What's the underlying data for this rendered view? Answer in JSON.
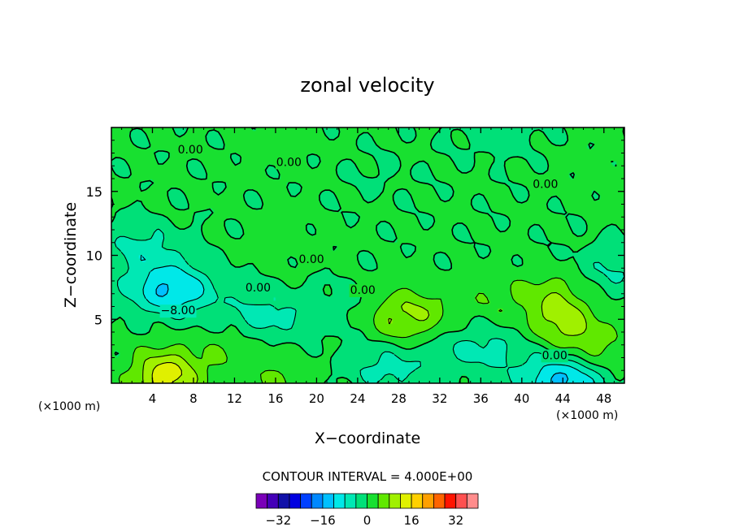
{
  "chart_data": {
    "type": "heatmap",
    "title": "zonal velocity",
    "xlabel": "X−coordinate",
    "ylabel": "Z−coordinate",
    "x_unit": "(×1000 m)",
    "y_unit": "(×1000 m)",
    "xlim": [
      0,
      50
    ],
    "ylim": [
      0,
      20
    ],
    "x_ticks": [
      4,
      8,
      12,
      16,
      20,
      24,
      28,
      32,
      36,
      40,
      44,
      48
    ],
    "x_tick_labels": [
      "4",
      "8",
      "12",
      "16",
      "20",
      "24",
      "28",
      "32",
      "36",
      "40",
      "44",
      "48"
    ],
    "y_ticks": [
      5,
      10,
      15
    ],
    "y_tick_labels": [
      "5",
      "10",
      "15"
    ],
    "contour_interval_text": "CONTOUR INTERVAL = 4.000E+00",
    "contour_labels": [
      {
        "text": "0.00",
        "x": 7.7,
        "y": 18.3
      },
      {
        "text": "0.00",
        "x": 17.3,
        "y": 17.3
      },
      {
        "text": "0.00",
        "x": 42.3,
        "y": 15.6
      },
      {
        "text": "0.00",
        "x": 19.5,
        "y": 9.7
      },
      {
        "text": "0.00",
        "x": 14.3,
        "y": 7.5
      },
      {
        "text": "0.00",
        "x": 24.5,
        "y": 7.3
      },
      {
        "text": "−8.00",
        "x": 6.5,
        "y": 5.7
      },
      {
        "text": "0.00",
        "x": 43.2,
        "y": 2.2
      }
    ],
    "features": [
      {
        "kind": "min",
        "x": 5.8,
        "y": 7.3,
        "value": -13
      },
      {
        "kind": "min",
        "x": 3.0,
        "y": 10.5,
        "value": -6
      },
      {
        "kind": "min",
        "x": 15.0,
        "y": 5.3,
        "value": -6
      },
      {
        "kind": "min",
        "x": 22.3,
        "y": 5.8,
        "value": -2.5
      },
      {
        "kind": "min",
        "x": 27.0,
        "y": 1.2,
        "value": -6
      },
      {
        "kind": "min",
        "x": 36.0,
        "y": 2.8,
        "value": -6
      },
      {
        "kind": "min",
        "x": 44.0,
        "y": 0.3,
        "value": -14
      },
      {
        "kind": "min",
        "x": 49.5,
        "y": 9.0,
        "value": -5
      },
      {
        "kind": "min",
        "x": 37.5,
        "y": 19.8,
        "value": -3
      },
      {
        "kind": "min",
        "x": 26.0,
        "y": 16.3,
        "value": -1
      },
      {
        "kind": "max",
        "x": 5.3,
        "y": 0.6,
        "value": 14
      },
      {
        "kind": "max",
        "x": 27.7,
        "y": 5.2,
        "value": 7
      },
      {
        "kind": "max",
        "x": 44.0,
        "y": 4.7,
        "value": 8
      },
      {
        "kind": "max",
        "x": 47.0,
        "y": 2.6,
        "value": 5.5
      },
      {
        "kind": "max",
        "x": 16.5,
        "y": 0.3,
        "value": 4
      },
      {
        "kind": "max",
        "x": 31.0,
        "y": 5.5,
        "value": 4
      },
      {
        "kind": "max",
        "x": 43.0,
        "y": 7.0,
        "value": 5
      },
      {
        "kind": "max",
        "x": 11.0,
        "y": 2.5,
        "value": 3
      },
      {
        "kind": "max",
        "x": 37.5,
        "y": 6.5,
        "value": 3
      },
      {
        "kind": "max",
        "x": 17.3,
        "y": 11.0,
        "value": 1.5
      },
      {
        "kind": "max",
        "x": 16.0,
        "y": 18.7,
        "value": 1.5
      },
      {
        "kind": "max",
        "x": 48.5,
        "y": 16.0,
        "value": 1.5
      }
    ],
    "colorbar": {
      "levels": [
        -36,
        -32,
        -28,
        -24,
        -20,
        -16,
        -12,
        -8,
        -4,
        0,
        4,
        8,
        12,
        16,
        20,
        24,
        28,
        32,
        36
      ],
      "colors": [
        "#7a00b8",
        "#4400b8",
        "#1010a8",
        "#0000e0",
        "#0040ff",
        "#0088ff",
        "#00c0ff",
        "#00e8e8",
        "#00e8b4",
        "#00e078",
        "#18e030",
        "#60e800",
        "#a0f000",
        "#e0f000",
        "#ffd000",
        "#ffa000",
        "#ff6400",
        "#ff1400",
        "#ff5050",
        "#ff8c8c"
      ],
      "tick_values": [
        -32,
        -16,
        0,
        16,
        32
      ],
      "tick_labels": [
        "−32",
        "−16",
        "0",
        "16",
        "32"
      ]
    },
    "grid": false,
    "legend": "colorbar-bottom"
  }
}
